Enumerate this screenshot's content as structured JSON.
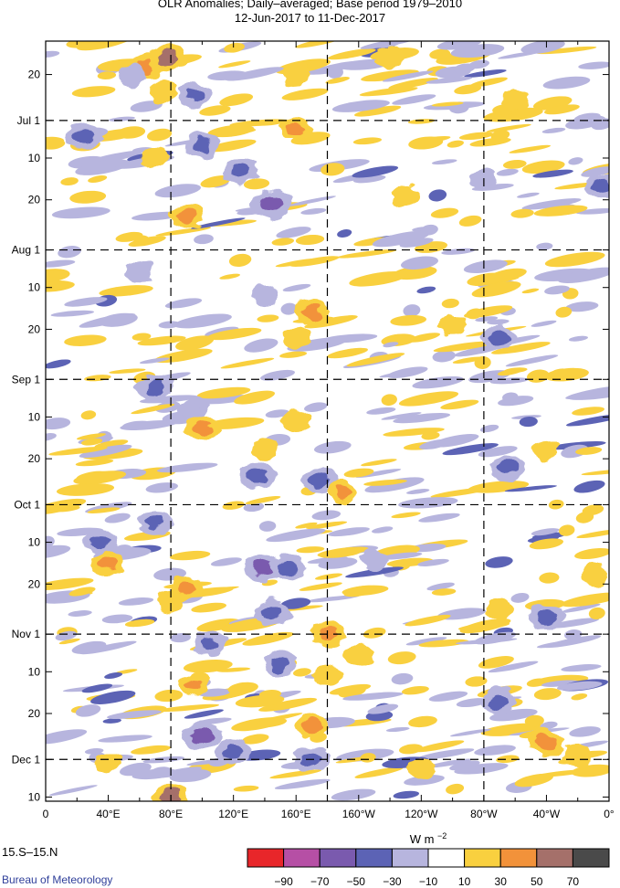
{
  "title": "OLR Anomalies; Daily–averaged; Base period 1979–2010",
  "subtitle": "12-Jun-2017 to 11-Dec-2017",
  "region_label": "15.S–15.N",
  "credit": "Bureau of Meteorology",
  "colors": {
    "levels": [
      "#e8262a",
      "#b64fa5",
      "#7a5aae",
      "#5c63b5",
      "#b7b5de",
      "#ffffff",
      "#f9d03f",
      "#f2923a",
      "#a5706a",
      "#4a4a4a"
    ]
  },
  "chart_data": {
    "type": "heatmap",
    "title": "OLR Anomalies; Daily–averaged; Base period 1979–2010",
    "subtitle": "12-Jun-2017 to 11-Dec-2017",
    "x_axis": {
      "range_deg_east": [
        0,
        360
      ],
      "ticks": [
        {
          "lon": 0,
          "label": "0"
        },
        {
          "lon": 40,
          "label": "40°E"
        },
        {
          "lon": 80,
          "label": "80°E"
        },
        {
          "lon": 120,
          "label": "120°E"
        },
        {
          "lon": 160,
          "label": "160°E"
        },
        {
          "lon": 200,
          "label": "160°W"
        },
        {
          "lon": 240,
          "label": "120°W"
        },
        {
          "lon": 280,
          "label": "80°W"
        },
        {
          "lon": 320,
          "label": "40°W"
        },
        {
          "lon": 360,
          "label": "0°"
        }
      ],
      "dashed_lines_at_lon": [
        80,
        180,
        280
      ]
    },
    "y_axis": {
      "range": [
        "2017-06-12",
        "2017-12-11"
      ],
      "ticks": [
        {
          "date": "2017-06-20",
          "label": "20"
        },
        {
          "date": "2017-07-01",
          "label": "Jul 1"
        },
        {
          "date": "2017-07-10",
          "label": "10"
        },
        {
          "date": "2017-07-20",
          "label": "20"
        },
        {
          "date": "2017-08-01",
          "label": "Aug 1"
        },
        {
          "date": "2017-08-10",
          "label": "10"
        },
        {
          "date": "2017-08-20",
          "label": "20"
        },
        {
          "date": "2017-09-01",
          "label": "Sep 1"
        },
        {
          "date": "2017-09-10",
          "label": "10"
        },
        {
          "date": "2017-09-20",
          "label": "20"
        },
        {
          "date": "2017-10-01",
          "label": "Oct 1"
        },
        {
          "date": "2017-10-10",
          "label": "10"
        },
        {
          "date": "2017-10-20",
          "label": "20"
        },
        {
          "date": "2017-11-01",
          "label": "Nov 1"
        },
        {
          "date": "2017-11-10",
          "label": "10"
        },
        {
          "date": "2017-11-20",
          "label": "20"
        },
        {
          "date": "2017-12-01",
          "label": "Dec 1"
        },
        {
          "date": "2017-12-10",
          "label": "10"
        }
      ],
      "dashed_lines_at": [
        "2017-07-01",
        "2017-08-01",
        "2017-09-01",
        "2017-10-01",
        "2017-11-01",
        "2017-12-01"
      ]
    },
    "colorbar": {
      "unit": "W m−2",
      "unit_text": "W m",
      "unit_sup": "−2",
      "boundaries": [
        -90,
        -70,
        -50,
        -30,
        -10,
        10,
        30,
        50,
        70
      ],
      "labels": [
        "−90",
        "−70",
        "−50",
        "−30",
        "−10",
        "10",
        "30",
        "50",
        "70"
      ]
    },
    "anomaly_regions": [
      {
        "lon": 65,
        "date": "2017-06-18",
        "value": 40
      },
      {
        "lon": 78,
        "date": "2017-06-16",
        "value": 55
      },
      {
        "lon": 75,
        "date": "2017-06-24",
        "value": 25
      },
      {
        "lon": 160,
        "date": "2017-06-20",
        "value": 20
      },
      {
        "lon": 220,
        "date": "2017-06-16",
        "value": 20
      },
      {
        "lon": 300,
        "date": "2017-06-26",
        "value": 20
      },
      {
        "lon": 95,
        "date": "2017-06-25",
        "value": -35
      },
      {
        "lon": 55,
        "date": "2017-06-20",
        "value": -20
      },
      {
        "lon": 25,
        "date": "2017-07-05",
        "value": -40
      },
      {
        "lon": 100,
        "date": "2017-07-07",
        "value": -45
      },
      {
        "lon": 125,
        "date": "2017-07-13",
        "value": -45
      },
      {
        "lon": 145,
        "date": "2017-07-21",
        "value": -55
      },
      {
        "lon": 70,
        "date": "2017-07-10",
        "value": 25
      },
      {
        "lon": 160,
        "date": "2017-07-03",
        "value": 30
      },
      {
        "lon": 230,
        "date": "2017-07-19",
        "value": 25
      },
      {
        "lon": 90,
        "date": "2017-07-24",
        "value": 40
      },
      {
        "lon": 280,
        "date": "2017-07-15",
        "value": -20
      },
      {
        "lon": 355,
        "date": "2017-07-17",
        "value": -35
      },
      {
        "lon": 60,
        "date": "2017-08-06",
        "value": -25
      },
      {
        "lon": 170,
        "date": "2017-08-16",
        "value": 45
      },
      {
        "lon": 160,
        "date": "2017-08-22",
        "value": 25
      },
      {
        "lon": 260,
        "date": "2017-08-19",
        "value": 25
      },
      {
        "lon": 290,
        "date": "2017-08-22",
        "value": -40
      },
      {
        "lon": 140,
        "date": "2017-08-12",
        "value": -20
      },
      {
        "lon": 70,
        "date": "2017-09-03",
        "value": -50
      },
      {
        "lon": 95,
        "date": "2017-09-08",
        "value": -30
      },
      {
        "lon": 100,
        "date": "2017-09-13",
        "value": 40
      },
      {
        "lon": 160,
        "date": "2017-09-11",
        "value": 25
      },
      {
        "lon": 140,
        "date": "2017-09-18",
        "value": 20
      },
      {
        "lon": 135,
        "date": "2017-09-24",
        "value": -45
      },
      {
        "lon": 175,
        "date": "2017-09-25",
        "value": -45
      },
      {
        "lon": 190,
        "date": "2017-09-28",
        "value": 30
      },
      {
        "lon": 295,
        "date": "2017-09-22",
        "value": -40
      },
      {
        "lon": 320,
        "date": "2017-09-18",
        "value": 20
      },
      {
        "lon": 70,
        "date": "2017-10-05",
        "value": -40
      },
      {
        "lon": 35,
        "date": "2017-10-10",
        "value": -40
      },
      {
        "lon": 140,
        "date": "2017-10-16",
        "value": -55
      },
      {
        "lon": 155,
        "date": "2017-10-16",
        "value": -40
      },
      {
        "lon": 210,
        "date": "2017-10-14",
        "value": -20
      },
      {
        "lon": 90,
        "date": "2017-10-21",
        "value": 40
      },
      {
        "lon": 80,
        "date": "2017-10-24",
        "value": 25
      },
      {
        "lon": 40,
        "date": "2017-10-15",
        "value": 35
      },
      {
        "lon": 145,
        "date": "2017-10-27",
        "value": -45
      },
      {
        "lon": 290,
        "date": "2017-10-26",
        "value": 20
      },
      {
        "lon": 320,
        "date": "2017-10-28",
        "value": -45
      },
      {
        "lon": 350,
        "date": "2017-10-18",
        "value": 20
      },
      {
        "lon": 180,
        "date": "2017-11-01",
        "value": 45
      },
      {
        "lon": 200,
        "date": "2017-11-06",
        "value": 25
      },
      {
        "lon": 105,
        "date": "2017-11-03",
        "value": -35
      },
      {
        "lon": 150,
        "date": "2017-11-08",
        "value": -40
      },
      {
        "lon": 95,
        "date": "2017-11-13",
        "value": 30
      },
      {
        "lon": 180,
        "date": "2017-11-11",
        "value": 25
      },
      {
        "lon": 100,
        "date": "2017-11-25",
        "value": -60
      },
      {
        "lon": 120,
        "date": "2017-11-29",
        "value": -45
      },
      {
        "lon": 170,
        "date": "2017-11-23",
        "value": 40
      },
      {
        "lon": 170,
        "date": "2017-12-01",
        "value": -50
      },
      {
        "lon": 290,
        "date": "2017-11-17",
        "value": -45
      },
      {
        "lon": 320,
        "date": "2017-11-27",
        "value": 45
      },
      {
        "lon": 340,
        "date": "2017-11-30",
        "value": 25
      },
      {
        "lon": 80,
        "date": "2017-12-10",
        "value": 50
      },
      {
        "lon": 40,
        "date": "2017-12-02",
        "value": 20
      },
      {
        "lon": 240,
        "date": "2017-12-03",
        "value": 20
      }
    ]
  }
}
